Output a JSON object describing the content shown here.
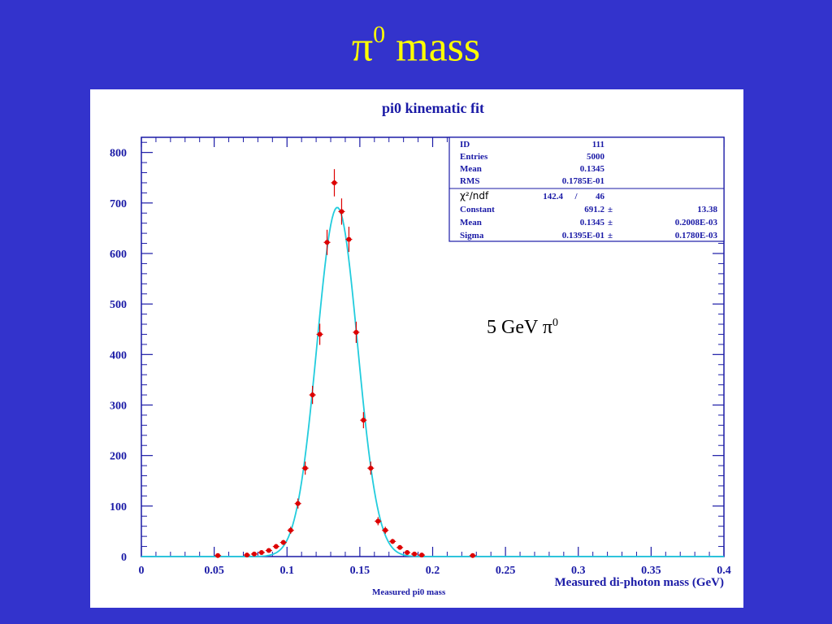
{
  "slide": {
    "title_main": "π",
    "title_sup": "0",
    "title_rest": " mass"
  },
  "annotation": {
    "text": "5 GeV π",
    "sup": "0"
  },
  "stats": {
    "rows": [
      {
        "label": "ID",
        "value": "111"
      },
      {
        "label": "Entries",
        "value": "5000"
      },
      {
        "label": "Mean",
        "value": "0.1345"
      },
      {
        "label": "RMS",
        "value": "0.1785E-01"
      }
    ],
    "fit_header": {
      "label": "χ²/ndf",
      "value": "142.4",
      "sep": "/",
      "ndf": "46"
    },
    "fit_rows": [
      {
        "label": "Constant",
        "value": "691.2",
        "error": "13.38"
      },
      {
        "label": "Mean",
        "value": "0.1345",
        "error": "0.2008E-03"
      },
      {
        "label": "Sigma",
        "value": "0.1395E-01",
        "error": "0.1780E-03"
      }
    ],
    "pm": "±"
  },
  "colors": {
    "background": "#3333cc",
    "title": "#ffff00",
    "axis_text": "#1a1aa6",
    "points": "#dd0000",
    "fit_curve": "#22ccdd"
  },
  "chart_data": {
    "type": "scatter",
    "title": "pi0 kinematic fit",
    "xlabel": "Measured di-photon mass (GeV)",
    "footer_label": "Measured pi0 mass",
    "xlim": [
      0,
      0.4
    ],
    "ylim": [
      0,
      830
    ],
    "x_ticks": [
      "0",
      "0.05",
      "0.1",
      "0.15",
      "0.2",
      "0.25",
      "0.3",
      "0.35",
      "0.4"
    ],
    "y_ticks": [
      "0",
      "100",
      "200",
      "300",
      "400",
      "500",
      "600",
      "700",
      "800"
    ],
    "series": [
      {
        "kind": "points-with-errors",
        "x": [
          0.0525,
          0.0725,
          0.0775,
          0.0825,
          0.0875,
          0.0925,
          0.0975,
          0.1025,
          0.1075,
          0.1125,
          0.1175,
          0.1225,
          0.1275,
          0.1325,
          0.1375,
          0.1425,
          0.1475,
          0.1525,
          0.1575,
          0.1625,
          0.1675,
          0.1725,
          0.1775,
          0.1825,
          0.1875,
          0.1925,
          0.2275
        ],
        "y": [
          2,
          3,
          5,
          8,
          12,
          20,
          28,
          52,
          105,
          175,
          320,
          440,
          622,
          740,
          683,
          628,
          444,
          270,
          175,
          70,
          52,
          30,
          18,
          8,
          5,
          3,
          2
        ],
        "yerr": [
          1.5,
          2,
          2,
          3,
          4,
          5,
          5,
          7,
          10,
          13,
          18,
          21,
          25,
          27,
          26,
          25,
          21,
          16,
          13,
          8,
          7,
          5,
          4,
          3,
          2,
          2,
          1.5
        ],
        "color": "#dd0000"
      },
      {
        "kind": "gaussian-fit",
        "constant": 691.2,
        "mean": 0.1345,
        "sigma": 0.01395,
        "color": "#22ccdd"
      }
    ]
  }
}
